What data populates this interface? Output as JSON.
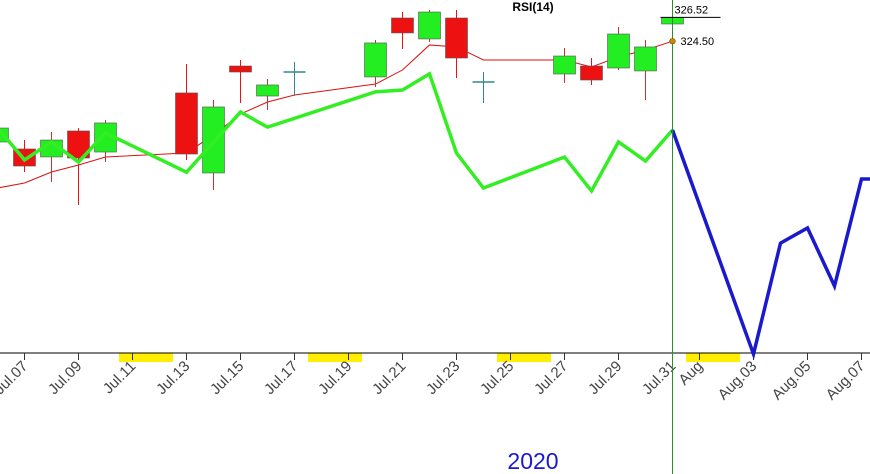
{
  "chart_data": {
    "type": "candlestick",
    "title": "RSI(14)",
    "xlabel": "2020",
    "xlim": [
      "2020-07-06",
      "2020-08-08"
    ],
    "xticks": [
      {
        "value": "2020-07-07",
        "label": "Jul.07"
      },
      {
        "value": "2020-07-09",
        "label": "Jul.09"
      },
      {
        "value": "2020-07-11",
        "label": "Jul.11"
      },
      {
        "value": "2020-07-13",
        "label": "Jul.13"
      },
      {
        "value": "2020-07-15",
        "label": "Jul.15"
      },
      {
        "value": "2020-07-17",
        "label": "Jul.17"
      },
      {
        "value": "2020-07-19",
        "label": "Jul.19"
      },
      {
        "value": "2020-07-21",
        "label": "Jul.21"
      },
      {
        "value": "2020-07-23",
        "label": "Jul.23"
      },
      {
        "value": "2020-07-25",
        "label": "Jul.25"
      },
      {
        "value": "2020-07-27",
        "label": "Jul.27"
      },
      {
        "value": "2020-07-29",
        "label": "Jul.29"
      },
      {
        "value": "2020-07-31",
        "label": "Jul.31"
      },
      {
        "value": "2020-08-01",
        "label": "Aug"
      },
      {
        "value": "2020-08-03",
        "label": "Aug.03"
      },
      {
        "value": "2020-08-05",
        "label": "Aug.05"
      },
      {
        "value": "2020-08-07",
        "label": "Aug.07"
      }
    ],
    "ylim": [
      298,
      328
    ],
    "y2lim": [
      2,
      100
    ],
    "weekend_color": "#ffee00",
    "vline": {
      "x": "2020-07-31",
      "color": "#2e8b2e"
    },
    "candles": {
      "x": [
        "2020-07-06",
        "2020-07-07",
        "2020-07-08",
        "2020-07-09",
        "2020-07-10",
        "2020-07-13",
        "2020-07-14",
        "2020-07-15",
        "2020-07-16",
        "2020-07-17",
        "2020-07-20",
        "2020-07-21",
        "2020-07-22",
        "2020-07-23",
        "2020-07-24",
        "2020-07-27",
        "2020-07-28",
        "2020-07-29",
        "2020-07-30",
        "2020-07-31"
      ],
      "open": [
        315.93,
        315.34,
        314.66,
        316.87,
        315.08,
        320.1,
        313.3,
        322.39,
        319.84,
        321.88,
        321.46,
        326.47,
        324.69,
        326.47,
        321.03,
        321.71,
        322.39,
        322.22,
        321.97,
        325.96
      ],
      "high": [
        317.38,
        316.1,
        316.78,
        317.12,
        317.8,
        322.56,
        319.5,
        322.9,
        321.29,
        322.73,
        324.6,
        326.98,
        327.15,
        327.15,
        321.88,
        323.92,
        323.07,
        325.71,
        324.6,
        326.81
      ],
      "low": [
        315.25,
        313.38,
        312.53,
        310.58,
        314.23,
        314.4,
        311.85,
        319.25,
        318.65,
        319.84,
        320.61,
        323.84,
        324.43,
        321.37,
        319.25,
        320.95,
        320.78,
        322.05,
        319.5,
        325.96
      ],
      "close": [
        317.12,
        313.89,
        316.1,
        314.57,
        317.55,
        314.91,
        318.91,
        321.88,
        320.78,
        321.88,
        324.35,
        325.2,
        326.98,
        323.07,
        321.03,
        323.24,
        321.2,
        325.11,
        324.01,
        326.52
      ],
      "up_color": "#22ee22",
      "down_color": "#ee1111",
      "doji_color": "#2e8b8b"
    },
    "series": [
      {
        "color": "#dd1111",
        "width": 1,
        "axis": "y",
        "x": [
          "2020-07-06",
          "2020-07-07",
          "2020-07-08",
          "2020-07-09",
          "2020-07-10",
          "2020-07-13",
          "2020-07-14",
          "2020-07-15",
          "2020-07-16",
          "2020-07-17",
          "2020-07-20",
          "2020-07-21",
          "2020-07-22",
          "2020-07-23",
          "2020-07-24",
          "2020-07-27",
          "2020-07-28",
          "2020-07-29",
          "2020-07-30",
          "2020-07-31"
        ],
        "values": [
          312.02,
          312.45,
          313.38,
          313.98,
          314.66,
          315.0,
          316.53,
          318.31,
          319.33,
          319.93,
          320.86,
          322.05,
          324.18,
          324.01,
          322.9,
          322.9,
          322.31,
          323.16,
          323.75,
          324.5
        ]
      },
      {
        "color": "#33ee22",
        "width": 3.5,
        "axis": "y2",
        "x": [
          "2020-07-06",
          "2020-07-07",
          "2020-07-08",
          "2020-07-09",
          "2020-07-10",
          "2020-07-13",
          "2020-07-15",
          "2020-07-16",
          "2020-07-20",
          "2020-07-21",
          "2020-07-22",
          "2020-07-23",
          "2020-07-24",
          "2020-07-27",
          "2020-07-28",
          "2020-07-29",
          "2020-07-30",
          "2020-07-31"
        ],
        "values": [
          64.5,
          55.6,
          60.6,
          55.0,
          63.1,
          52.2,
          68.9,
          64.7,
          74.5,
          75.0,
          79.5,
          57.5,
          47.8,
          56.4,
          47.0,
          60.6,
          55.3,
          63.9
        ]
      },
      {
        "color": "#1a1acc",
        "width": 3.5,
        "axis": "y2",
        "x": [
          "2020-07-31",
          "2020-08-03",
          "2020-08-04",
          "2020-08-05",
          "2020-08-06",
          "2020-08-07",
          "2020-08-08"
        ],
        "values": [
          63.9,
          1.7,
          32.5,
          36.7,
          20.6,
          50.3,
          50.3
        ]
      }
    ],
    "price_labels": [
      {
        "value": 326.52,
        "label": "326.52",
        "marker": "line",
        "color": "#000000"
      },
      {
        "value": 324.5,
        "label": "324.50",
        "marker": "dot",
        "color": "#cc8800"
      }
    ]
  }
}
